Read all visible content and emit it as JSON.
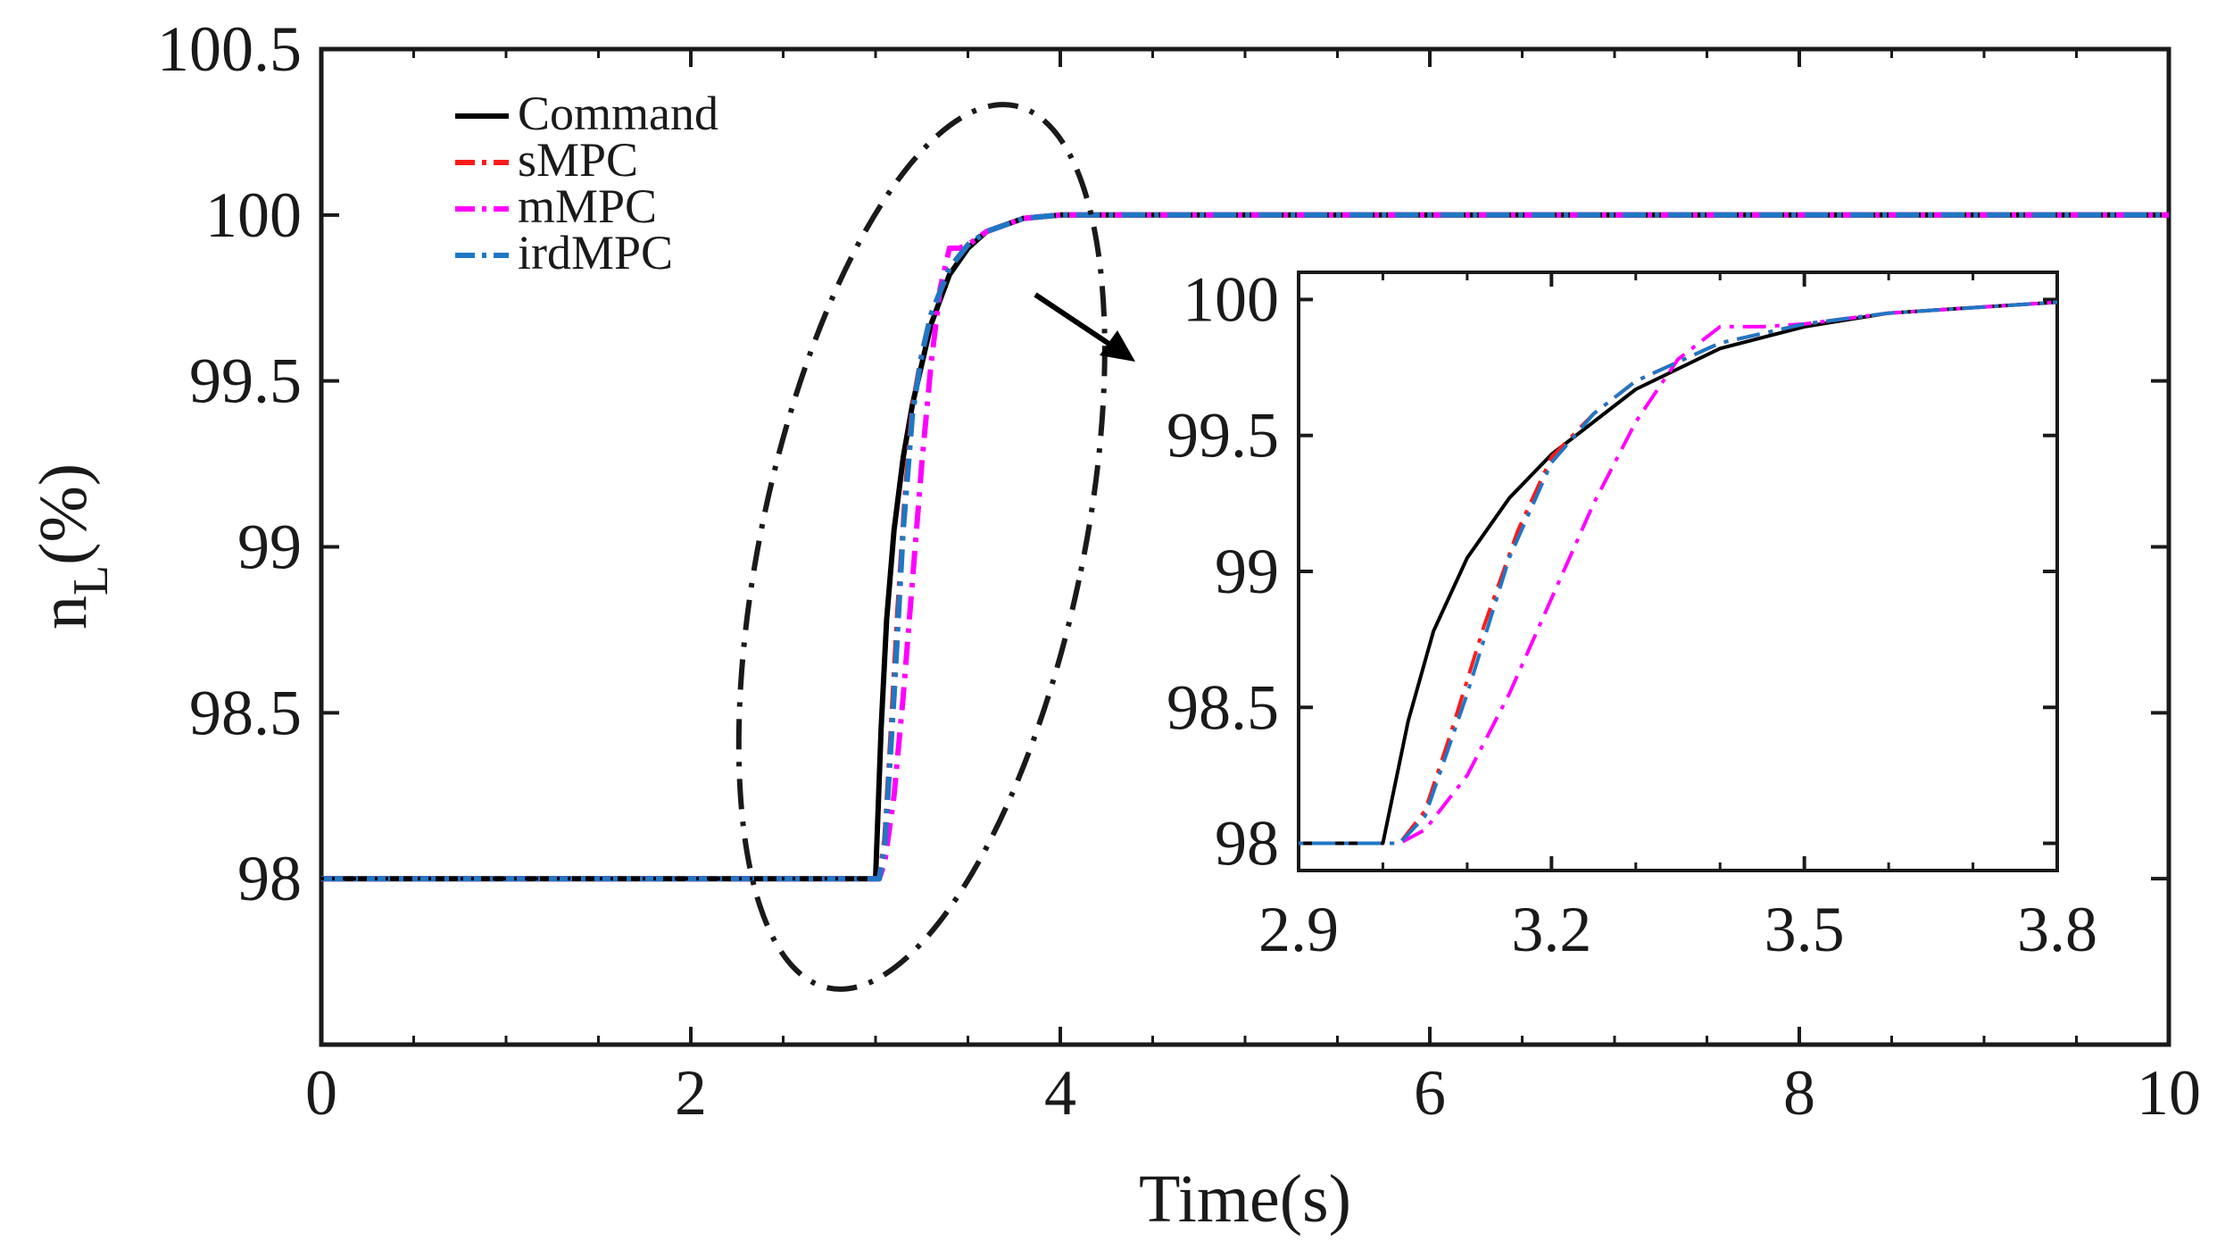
{
  "chart_data": {
    "type": "line",
    "xlabel": "Time(s)",
    "ylabel_main": "n",
    "ylabel_sub": "L",
    "ylabel_suffix": "(%)",
    "xlim": [
      0,
      10
    ],
    "ylim": [
      97.5,
      100.5
    ],
    "xticks": [
      0,
      2,
      4,
      6,
      8,
      10
    ],
    "xtick_labels": [
      "0",
      "2",
      "4",
      "6",
      "8",
      "10"
    ],
    "yticks": [
      98,
      98.5,
      99,
      99.5,
      100,
      100.5
    ],
    "ytick_labels": [
      "98",
      "98.5",
      "99",
      "99.5",
      "100",
      "100.5"
    ],
    "grid": false,
    "legend_position": "top-left",
    "series": [
      {
        "name": "Command",
        "color": "#000000",
        "dash": "solid",
        "x": [
          0,
          2.97,
          3.0,
          3.03,
          3.06,
          3.1,
          3.15,
          3.2,
          3.3,
          3.4,
          3.5,
          3.6,
          3.8,
          4.0,
          5,
          10
        ],
        "y": [
          98,
          98,
          98,
          98.45,
          98.78,
          99.05,
          99.27,
          99.43,
          99.67,
          99.82,
          99.9,
          99.95,
          99.99,
          100,
          100,
          100
        ]
      },
      {
        "name": "sMPC",
        "color": "#ff1a1a",
        "dash": "dash-dot",
        "x": [
          0,
          3.0,
          3.02,
          3.05,
          3.08,
          3.12,
          3.16,
          3.2,
          3.25,
          3.3,
          3.4,
          3.5,
          3.6,
          3.8,
          4.0,
          5,
          10
        ],
        "y": [
          98,
          98,
          98,
          98.12,
          98.4,
          98.8,
          99.15,
          99.42,
          99.58,
          99.7,
          99.84,
          99.91,
          99.95,
          99.99,
          100,
          100,
          100
        ]
      },
      {
        "name": "mMPC",
        "color": "#ff00ff",
        "dash": "dash-dot",
        "x": [
          0,
          3.0,
          3.02,
          3.05,
          3.1,
          3.15,
          3.2,
          3.25,
          3.3,
          3.35,
          3.4,
          3.45,
          3.5,
          3.6,
          3.8,
          4.0,
          5,
          10
        ],
        "y": [
          98,
          98,
          98,
          98.05,
          98.25,
          98.55,
          98.9,
          99.25,
          99.55,
          99.78,
          99.9,
          99.9,
          99.91,
          99.95,
          99.99,
          100,
          100,
          100
        ]
      },
      {
        "name": "irdMPC",
        "color": "#1f77c4",
        "dash": "dash-dot",
        "x": [
          0,
          3.0,
          3.02,
          3.05,
          3.1,
          3.15,
          3.2,
          3.25,
          3.3,
          3.4,
          3.5,
          3.6,
          3.8,
          4.0,
          5,
          10
        ],
        "y": [
          98,
          98,
          98,
          98.1,
          98.55,
          99.05,
          99.4,
          99.58,
          99.7,
          99.84,
          99.91,
          99.95,
          99.99,
          100,
          100,
          100
        ]
      }
    ],
    "inset": {
      "xlim": [
        2.9,
        3.8
      ],
      "ylim": [
        97.9,
        100.1
      ],
      "xticks": [
        2.9,
        3.2,
        3.5,
        3.8
      ],
      "xtick_labels": [
        "2.9",
        "3.2",
        "3.5",
        "3.8"
      ],
      "yticks": [
        98,
        98.5,
        99,
        99.5,
        100
      ],
      "ytick_labels": [
        "98",
        "98.5",
        "99",
        "99.5",
        "100"
      ],
      "zoom_region": {
        "x_center": 3.25,
        "y_center": 99.0
      }
    }
  }
}
